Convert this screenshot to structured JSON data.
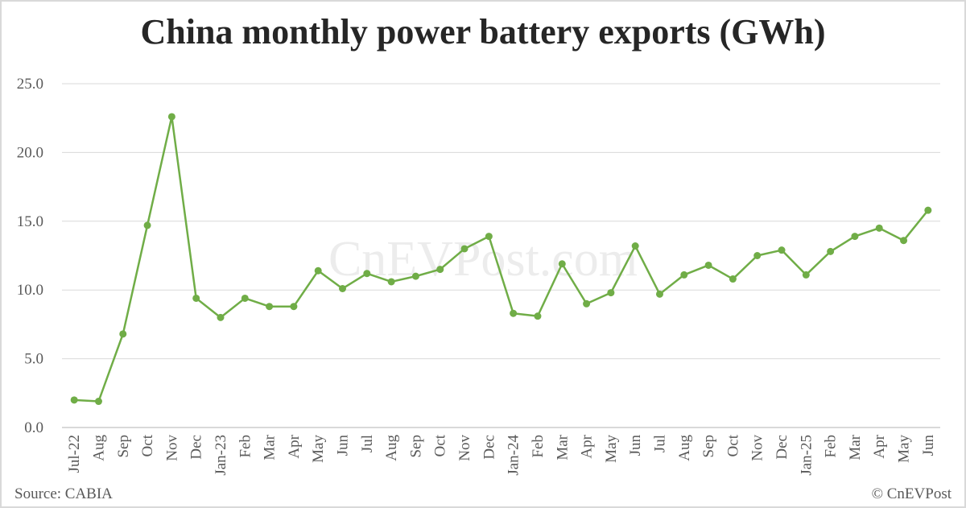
{
  "chart_data": {
    "type": "line",
    "title": "China monthly power battery exports (GWh)",
    "xlabel": "",
    "ylabel": "",
    "ylim": [
      0,
      25
    ],
    "yticks": [
      "0.0",
      "5.0",
      "10.0",
      "15.0",
      "20.0",
      "25.0"
    ],
    "grid": true,
    "line_color": "#70ad47",
    "categories": [
      "Jul-22",
      "Aug",
      "Sep",
      "Oct",
      "Nov",
      "Dec",
      "Jan-23",
      "Feb",
      "Mar",
      "Apr",
      "May",
      "Jun",
      "Jul",
      "Aug",
      "Sep",
      "Oct",
      "Nov",
      "Dec",
      "Jan-24",
      "Feb",
      "Mar",
      "Apr",
      "May",
      "Jun",
      "Jul",
      "Aug",
      "Sep",
      "Oct",
      "Nov",
      "Dec",
      "Jan-25",
      "Feb",
      "Mar",
      "Apr",
      "May",
      "Jun"
    ],
    "values": [
      2.0,
      1.9,
      6.8,
      14.7,
      22.6,
      9.4,
      8.0,
      9.4,
      8.8,
      8.8,
      11.4,
      10.1,
      11.2,
      10.6,
      11.0,
      11.5,
      13.0,
      13.9,
      8.3,
      8.1,
      11.9,
      9.0,
      9.8,
      13.2,
      9.7,
      11.1,
      11.8,
      10.8,
      12.5,
      12.9,
      11.1,
      12.8,
      13.9,
      14.5,
      13.6,
      15.8
    ]
  },
  "footer": {
    "source": "Source: CABIA",
    "copyright": "© CnEVPost"
  },
  "watermark": "CnEVPost.com"
}
